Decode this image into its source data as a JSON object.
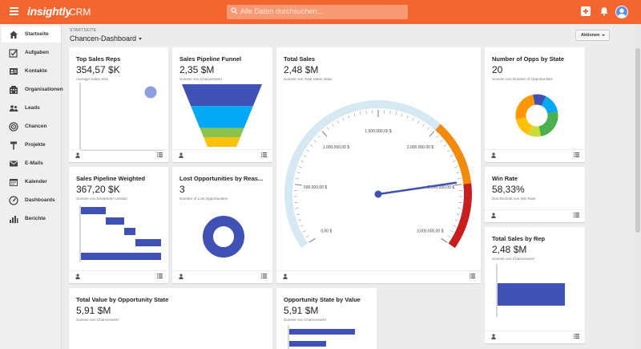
{
  "app": {
    "logo": "insightly",
    "name": "CRM"
  },
  "search": {
    "placeholder": "Alle Daten durchsuchen..."
  },
  "topbar_icons": [
    "plus-icon",
    "bell-icon",
    "user-avatar"
  ],
  "sidebar": {
    "items": [
      {
        "label": "Startseite",
        "icon": "home-icon",
        "active": true
      },
      {
        "label": "Aufgaben",
        "icon": "task-check-icon"
      },
      {
        "label": "Kontakte",
        "icon": "contact-card-icon"
      },
      {
        "label": "Organisationen",
        "icon": "building-icon"
      },
      {
        "label": "Leads",
        "icon": "leads-icon"
      },
      {
        "label": "Chancen",
        "icon": "target-icon"
      },
      {
        "label": "Projekte",
        "icon": "hammer-icon"
      },
      {
        "label": "E-Mails",
        "icon": "envelope-icon"
      },
      {
        "label": "Kalender",
        "icon": "calendar-icon"
      },
      {
        "label": "Dashboards",
        "icon": "gauge-icon"
      },
      {
        "label": "Berichte",
        "icon": "bar-chart-icon"
      }
    ]
  },
  "header": {
    "breadcrumb": "STARTSEITE",
    "title": "Chancen-Dashboard",
    "actions_label": "Aktionen"
  },
  "colors": {
    "brand": "#f4662f",
    "chart_blue": "#3f51b5",
    "gauge_orange": "#f28a0c",
    "gauge_red": "#c81e1e",
    "gauge_track": "#d6e8f2"
  },
  "cards": {
    "top_sales_reps": {
      "title": "Top Sales Reps",
      "value": "354,57 $K",
      "subtitle": "Average Sales Size"
    },
    "pipeline_funnel": {
      "title": "Sales Pipeline Funnel",
      "value": "2,35 $M",
      "subtitle": "Summe von Chancenwert"
    },
    "total_sales": {
      "title": "Total Sales",
      "value": "2,48 $M",
      "subtitle": "Summe von Total Sales Value",
      "gauge_labels": [
        "0,00 $",
        "500.000,00 $",
        "1.000.000,00 $",
        "1.500.000,00 $",
        "2.000.000,00 $",
        "2.500.000,00 $",
        "3.000.000,00 $"
      ]
    },
    "opps_by_state": {
      "title": "Number of Opps by State",
      "value": "20",
      "subtitle": "Summe von Number of Opportunities"
    },
    "pipeline_weighted": {
      "title": "Sales Pipeline Weighted",
      "value": "367,20 $K",
      "subtitle": "Summe von Erwarteter Umsatz"
    },
    "lost_opps": {
      "title": "Lost Opportunities by Reas...",
      "value": "3",
      "subtitle": "Number of Lost Opportunities"
    },
    "win_rate": {
      "title": "Win Rate",
      "value": "58,33%",
      "subtitle": "Durchschnitt von Win Rate"
    },
    "total_sales_by_rep": {
      "title": "Total Sales by Rep",
      "value": "2,48 $M",
      "subtitle": "Summe von Chancenwert"
    },
    "value_by_state": {
      "title": "Total Value by Opportunity State",
      "value": "5,91 $M",
      "subtitle": "Summe von Chancenwert"
    },
    "state_by_value": {
      "title": "Opportunity State by Value",
      "value": "5,91 $M",
      "subtitle": "Summe von Chancenwert"
    }
  },
  "chart_data": [
    {
      "type": "gauge",
      "min": 0,
      "max": 3000000,
      "value": 2480000,
      "ticks": [
        0,
        500000,
        1000000,
        1500000,
        2000000,
        2500000,
        3000000
      ]
    },
    {
      "type": "pie",
      "slices": [
        {
          "color": "#3f51b5",
          "share": 0.1
        },
        {
          "color": "#03a9f4",
          "share": 0.15
        },
        {
          "color": "#4caf50",
          "share": 0.25
        },
        {
          "color": "#cddc39",
          "share": 0.1
        },
        {
          "color": "#ffc107",
          "share": 0.15
        },
        {
          "color": "#ff9800",
          "share": 0.25
        }
      ]
    },
    {
      "type": "funnel",
      "stages": [
        {
          "color": "#3f51b5",
          "share": 0.35
        },
        {
          "color": "#03a9f4",
          "share": 0.35
        },
        {
          "color": "#8bc34a",
          "share": 0.15
        },
        {
          "color": "#ffc107",
          "share": 0.15
        }
      ]
    }
  ]
}
